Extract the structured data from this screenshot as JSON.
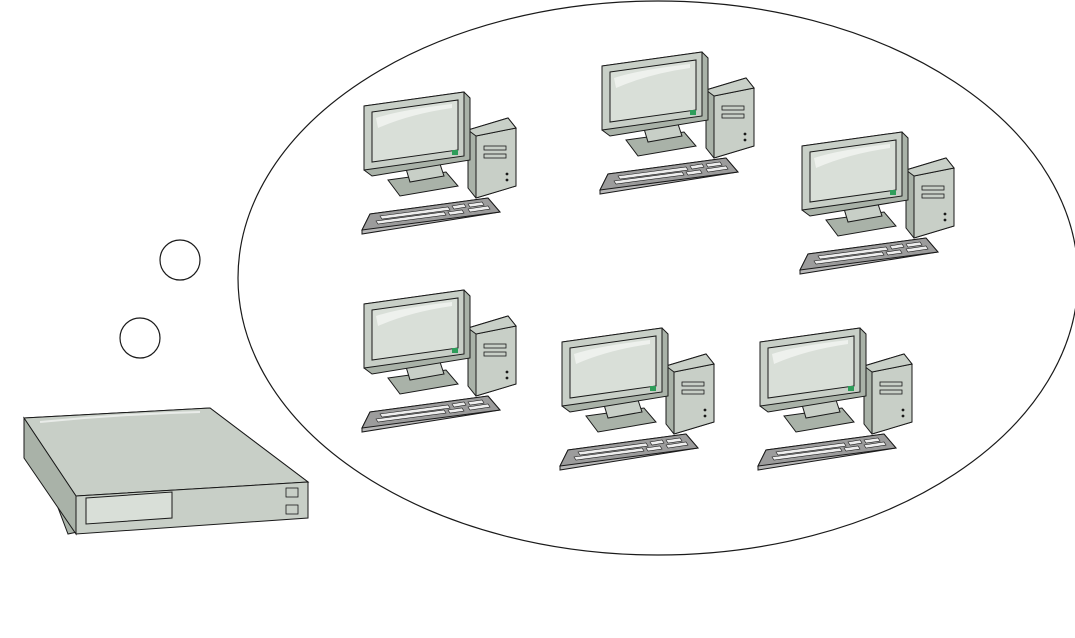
{
  "diagram": {
    "colors": {
      "outline": "#1a1a1a",
      "body": "#c8cfc7",
      "body_shade": "#a9b2a8",
      "screen": "#d9dfd8",
      "keyboard": "#9c9c9c",
      "keyboard_side": "#b8b8b8",
      "led": "#2e9d5a",
      "background": "#ffffff"
    },
    "bubble": {
      "label": ""
    },
    "thought_circles": [
      {
        "name": "thought-circle-upper"
      },
      {
        "name": "thought-circle-lower"
      }
    ],
    "server": {
      "icon": "server-icon"
    },
    "computers": [
      {
        "name": "computer-top-left",
        "icon": "desktop-computer-icon"
      },
      {
        "name": "computer-top-center",
        "icon": "desktop-computer-icon"
      },
      {
        "name": "computer-right",
        "icon": "desktop-computer-icon"
      },
      {
        "name": "computer-bottom-left",
        "icon": "desktop-computer-icon"
      },
      {
        "name": "computer-bottom-center",
        "icon": "desktop-computer-icon"
      },
      {
        "name": "computer-bottom-right",
        "icon": "desktop-computer-icon"
      }
    ]
  }
}
